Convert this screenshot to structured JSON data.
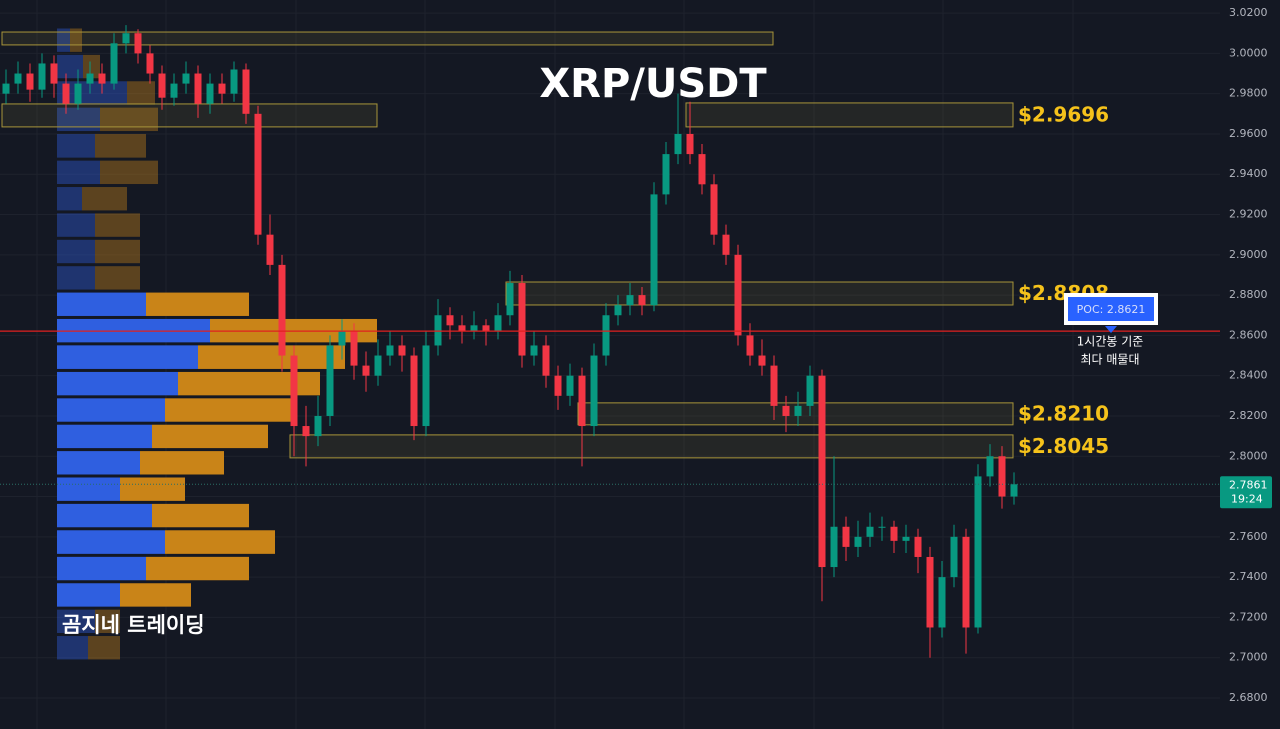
{
  "chart_data": {
    "type": "candlestick",
    "title": "XRP/USDT",
    "watermark": "곰지네 트레이딩",
    "ylim": [
      2.6646,
      3.0265
    ],
    "yticks": [
      {
        "value": 2.68,
        "label": "2.6800"
      },
      {
        "value": 2.7,
        "label": "2.7000"
      },
      {
        "value": 2.72,
        "label": "2.7200"
      },
      {
        "value": 2.74,
        "label": "2.7400"
      },
      {
        "value": 2.76,
        "label": "2.7600"
      },
      {
        "value": 2.78,
        "label": "2.7800"
      },
      {
        "value": 2.8,
        "label": "2.8000"
      },
      {
        "value": 2.82,
        "label": "2.8200"
      },
      {
        "value": 2.84,
        "label": "2.8400"
      },
      {
        "value": 2.86,
        "label": "2.8600"
      },
      {
        "value": 2.88,
        "label": "2.8800"
      },
      {
        "value": 2.9,
        "label": "2.9000"
      },
      {
        "value": 2.92,
        "label": "2.9200"
      },
      {
        "value": 2.94,
        "label": "2.9400"
      },
      {
        "value": 2.96,
        "label": "2.9600"
      },
      {
        "value": 2.98,
        "label": "2.9800"
      },
      {
        "value": 3.0,
        "label": "3.0000"
      },
      {
        "value": 3.02,
        "label": "3.0200"
      }
    ],
    "grid": true,
    "up_color": "#089981",
    "down_color": "#f23645",
    "ohlc": [
      [
        2.98,
        2.992,
        2.975,
        2.985
      ],
      [
        2.985,
        2.996,
        2.98,
        2.99
      ],
      [
        2.99,
        2.995,
        2.976,
        2.982
      ],
      [
        2.982,
        3.0,
        2.978,
        2.995
      ],
      [
        2.995,
        2.999,
        2.978,
        2.985
      ],
      [
        2.985,
        2.99,
        2.97,
        2.975
      ],
      [
        2.975,
        2.992,
        2.972,
        2.985
      ],
      [
        2.985,
        2.996,
        2.98,
        2.99
      ],
      [
        2.99,
        2.995,
        2.98,
        2.985
      ],
      [
        2.985,
        3.01,
        2.982,
        3.005
      ],
      [
        3.005,
        3.014,
        3.0,
        3.01
      ],
      [
        3.01,
        3.012,
        2.995,
        3.0
      ],
      [
        3.0,
        3.004,
        2.985,
        2.99
      ],
      [
        2.99,
        2.994,
        2.972,
        2.978
      ],
      [
        2.978,
        2.99,
        2.974,
        2.985
      ],
      [
        2.985,
        2.996,
        2.98,
        2.99
      ],
      [
        2.99,
        2.994,
        2.968,
        2.975
      ],
      [
        2.975,
        2.99,
        2.97,
        2.985
      ],
      [
        2.985,
        2.99,
        2.975,
        2.98
      ],
      [
        2.98,
        2.996,
        2.976,
        2.992
      ],
      [
        2.992,
        2.995,
        2.965,
        2.97
      ],
      [
        2.97,
        2.974,
        2.905,
        2.91
      ],
      [
        2.91,
        2.92,
        2.89,
        2.895
      ],
      [
        2.895,
        2.9,
        2.842,
        2.85
      ],
      [
        2.85,
        2.855,
        2.8,
        2.815
      ],
      [
        2.815,
        2.825,
        2.795,
        2.81
      ],
      [
        2.81,
        2.83,
        2.805,
        2.82
      ],
      [
        2.82,
        2.86,
        2.815,
        2.855
      ],
      [
        2.855,
        2.868,
        2.848,
        2.862
      ],
      [
        2.862,
        2.866,
        2.838,
        2.845
      ],
      [
        2.845,
        2.852,
        2.832,
        2.84
      ],
      [
        2.84,
        2.858,
        2.835,
        2.85
      ],
      [
        2.85,
        2.862,
        2.845,
        2.855
      ],
      [
        2.855,
        2.86,
        2.842,
        2.85
      ],
      [
        2.85,
        2.854,
        2.808,
        2.815
      ],
      [
        2.815,
        2.862,
        2.81,
        2.855
      ],
      [
        2.855,
        2.878,
        2.85,
        2.87
      ],
      [
        2.87,
        2.874,
        2.858,
        2.865
      ],
      [
        2.865,
        2.87,
        2.856,
        2.862
      ],
      [
        2.862,
        2.872,
        2.858,
        2.865
      ],
      [
        2.865,
        2.868,
        2.855,
        2.862
      ],
      [
        2.862,
        2.876,
        2.858,
        2.87
      ],
      [
        2.87,
        2.892,
        2.865,
        2.886
      ],
      [
        2.886,
        2.89,
        2.844,
        2.85
      ],
      [
        2.85,
        2.862,
        2.845,
        2.855
      ],
      [
        2.855,
        2.86,
        2.834,
        2.84
      ],
      [
        2.84,
        2.845,
        2.823,
        2.83
      ],
      [
        2.83,
        2.846,
        2.825,
        2.84
      ],
      [
        2.84,
        2.844,
        2.795,
        2.815
      ],
      [
        2.815,
        2.856,
        2.81,
        2.85
      ],
      [
        2.85,
        2.876,
        2.845,
        2.87
      ],
      [
        2.87,
        2.88,
        2.865,
        2.875
      ],
      [
        2.875,
        2.886,
        2.87,
        2.88
      ],
      [
        2.88,
        2.884,
        2.87,
        2.875
      ],
      [
        2.875,
        2.936,
        2.872,
        2.93
      ],
      [
        2.93,
        2.956,
        2.925,
        2.95
      ],
      [
        2.95,
        2.98,
        2.945,
        2.96
      ],
      [
        2.96,
        2.976,
        2.945,
        2.95
      ],
      [
        2.95,
        2.955,
        2.93,
        2.935
      ],
      [
        2.935,
        2.94,
        2.905,
        2.91
      ],
      [
        2.91,
        2.915,
        2.895,
        2.9
      ],
      [
        2.9,
        2.905,
        2.855,
        2.86
      ],
      [
        2.86,
        2.866,
        2.845,
        2.85
      ],
      [
        2.85,
        2.858,
        2.84,
        2.845
      ],
      [
        2.845,
        2.85,
        2.818,
        2.825
      ],
      [
        2.825,
        2.83,
        2.812,
        2.82
      ],
      [
        2.82,
        2.832,
        2.815,
        2.825
      ],
      [
        2.825,
        2.845,
        2.82,
        2.84
      ],
      [
        2.84,
        2.843,
        2.728,
        2.745
      ],
      [
        2.745,
        2.8,
        2.74,
        2.765
      ],
      [
        2.765,
        2.77,
        2.748,
        2.755
      ],
      [
        2.755,
        2.768,
        2.75,
        2.76
      ],
      [
        2.76,
        2.772,
        2.755,
        2.765
      ],
      [
        2.765,
        2.77,
        2.758,
        2.765
      ],
      [
        2.765,
        2.768,
        2.752,
        2.758
      ],
      [
        2.758,
        2.766,
        2.752,
        2.76
      ],
      [
        2.76,
        2.764,
        2.742,
        2.75
      ],
      [
        2.75,
        2.755,
        2.7,
        2.715
      ],
      [
        2.715,
        2.748,
        2.71,
        2.74
      ],
      [
        2.74,
        2.766,
        2.735,
        2.76
      ],
      [
        2.76,
        2.764,
        2.702,
        2.715
      ],
      [
        2.715,
        2.796,
        2.712,
        2.79
      ],
      [
        2.79,
        2.806,
        2.785,
        2.8
      ],
      [
        2.8,
        2.805,
        2.774,
        2.78
      ],
      [
        2.78,
        2.792,
        2.776,
        2.7861
      ]
    ],
    "zones": [
      {
        "top": 3.0106,
        "bottom": 3.0042,
        "start": 0,
        "end": 64
      },
      {
        "top": 2.9749,
        "bottom": 2.9635,
        "start": 0,
        "end": 31
      },
      {
        "top": 2.9754,
        "bottom": 2.9635,
        "start": 57,
        "end": 84,
        "label": "$2.9696"
      },
      {
        "top": 2.8865,
        "bottom": 2.8751,
        "start": 42,
        "end": 84,
        "label": "$2.8808"
      },
      {
        "top": 2.8265,
        "bottom": 2.8156,
        "start": 48,
        "end": 84,
        "label": "$2.8210"
      },
      {
        "top": 2.8106,
        "bottom": 2.7992,
        "start": 24,
        "end": 84,
        "label": "$2.8045"
      }
    ],
    "poc": {
      "value": 2.8621,
      "label": "POC: 2.8621"
    },
    "poc_note": [
      "1시간봉 기준",
      "최다 매물대"
    ],
    "last_price": 2.7861,
    "countdown": "19:24",
    "volume_profile": {
      "bins": [
        3.0131,
        3.0,
        2.9869,
        2.9738,
        2.9607,
        2.9475,
        2.9344,
        2.9213,
        2.9082,
        2.8951,
        2.882,
        2.8689,
        2.8558,
        2.8426,
        2.8295,
        2.8164,
        2.8033,
        2.7902,
        2.7771,
        2.764,
        2.7508,
        2.7377,
        2.7246,
        2.7115,
        2.6984
      ],
      "buy": [
        13,
        26,
        70,
        43,
        38,
        43,
        25,
        38,
        38,
        38,
        89,
        153,
        141,
        121,
        108,
        95,
        83,
        63,
        95,
        108,
        89,
        63,
        38,
        31
      ],
      "sell": [
        12,
        17,
        28,
        58,
        51,
        58,
        45,
        45,
        45,
        45,
        103,
        167,
        147,
        142,
        128,
        116,
        84,
        65,
        97,
        110,
        103,
        71,
        25,
        32
      ],
      "value_area": [
        2.7246,
        2.882
      ],
      "buy_color": "#2f5fe0",
      "sell_color": "#c98418"
    }
  }
}
